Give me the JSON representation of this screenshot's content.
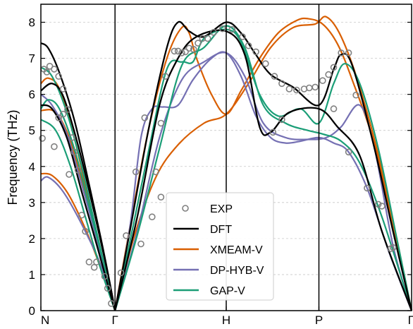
{
  "chart_data": {
    "type": "line",
    "title": "",
    "xlabel": "",
    "ylabel": "Frequency (THz)",
    "ylim": [
      0,
      8.5
    ],
    "yticks": [
      0,
      1,
      2,
      3,
      4,
      5,
      6,
      7,
      8
    ],
    "xlim": [
      0,
      5.0
    ],
    "k_points": [
      {
        "label": "N",
        "x": 0.0
      },
      {
        "label": "Γ",
        "x": 1.0
      },
      {
        "label": "H",
        "x": 2.5
      },
      {
        "label": "P",
        "x": 3.75
      },
      {
        "label": "Γ",
        "x": 5.0
      }
    ],
    "grid": "horizontal dashed",
    "legend": {
      "position": "bottom-center",
      "entries": [
        "EXP",
        "DFT",
        "XMEAM-V",
        "DP-HYB-V",
        "GAP-V"
      ]
    },
    "colors": {
      "EXP": "#808080",
      "DFT": "#000000",
      "XMEAM-V": "#d95f02",
      "DP-HYB-V": "#7570b3",
      "GAP-V": "#1b9e77"
    },
    "series": [
      {
        "name": "EXP",
        "kind": "scatter",
        "points": [
          [
            0.02,
            4.78
          ],
          [
            0.04,
            6.7
          ],
          [
            0.08,
            6.62
          ],
          [
            0.12,
            6.78
          ],
          [
            0.18,
            6.7
          ],
          [
            0.24,
            6.5
          ],
          [
            0.3,
            6.15
          ],
          [
            0.18,
            4.55
          ],
          [
            0.24,
            5.35
          ],
          [
            0.3,
            5.45
          ],
          [
            0.36,
            5.58
          ],
          [
            0.42,
            4.8
          ],
          [
            0.45,
            4.4
          ],
          [
            0.38,
            3.78
          ],
          [
            0.5,
            3.9
          ],
          [
            0.55,
            2.65
          ],
          [
            0.6,
            2.2
          ],
          [
            0.65,
            1.35
          ],
          [
            0.72,
            1.2
          ],
          [
            0.75,
            1.35
          ],
          [
            0.86,
            0.95
          ],
          [
            0.9,
            0.62
          ],
          [
            0.95,
            0.2
          ],
          [
            1.08,
            1.05
          ],
          [
            1.15,
            2.08
          ],
          [
            1.28,
            3.85
          ],
          [
            1.4,
            5.35
          ],
          [
            1.55,
            3.85
          ],
          [
            1.62,
            5.2
          ],
          [
            1.68,
            6.5
          ],
          [
            1.8,
            7.2
          ],
          [
            1.85,
            7.2
          ],
          [
            1.9,
            7.15
          ],
          [
            1.95,
            7.18
          ],
          [
            2.0,
            7.28
          ],
          [
            2.06,
            7.25
          ],
          [
            2.12,
            7.42
          ],
          [
            2.18,
            7.55
          ],
          [
            2.25,
            7.55
          ],
          [
            2.33,
            7.72
          ],
          [
            2.45,
            7.82
          ],
          [
            2.58,
            7.8
          ],
          [
            2.72,
            7.6
          ],
          [
            2.8,
            7.35
          ],
          [
            2.9,
            7.18
          ],
          [
            3.03,
            6.85
          ],
          [
            3.15,
            6.5
          ],
          [
            3.25,
            6.3
          ],
          [
            3.35,
            6.15
          ],
          [
            3.45,
            6.12
          ],
          [
            3.55,
            6.15
          ],
          [
            3.62,
            6.18
          ],
          [
            3.7,
            6.2
          ],
          [
            3.8,
            6.38
          ],
          [
            3.88,
            6.55
          ],
          [
            3.95,
            6.75
          ],
          [
            4.05,
            7.15
          ],
          [
            4.15,
            7.15
          ],
          [
            4.25,
            5.98
          ],
          [
            4.4,
            3.4
          ],
          [
            4.6,
            2.9
          ],
          [
            4.75,
            1.75
          ],
          [
            1.35,
            1.85
          ],
          [
            1.5,
            2.6
          ],
          [
            1.62,
            3.15
          ],
          [
            3.13,
            4.95
          ],
          [
            3.25,
            5.3
          ],
          [
            3.95,
            5.6
          ],
          [
            4.15,
            4.4
          ],
          [
            4.55,
            2.95
          ],
          [
            4.72,
            1.72
          ]
        ]
      },
      {
        "name": "DFT",
        "kind": "line",
        "branches": [
          [
            [
              0,
              7.42
            ],
            [
              0.1,
              7.28
            ],
            [
              0.25,
              6.6
            ],
            [
              0.45,
              5.3
            ],
            [
              0.65,
              3.5
            ],
            [
              0.85,
              1.6
            ],
            [
              1.0,
              0
            ]
          ],
          [
            [
              0,
              6.1
            ],
            [
              0.15,
              6.3
            ],
            [
              0.3,
              5.95
            ],
            [
              0.5,
              4.6
            ],
            [
              0.7,
              2.9
            ],
            [
              0.9,
              1.05
            ],
            [
              1.0,
              0
            ]
          ],
          [
            [
              0,
              5.7
            ],
            [
              0.15,
              5.6
            ],
            [
              0.35,
              4.8
            ],
            [
              0.55,
              3.3
            ],
            [
              0.75,
              1.85
            ],
            [
              1.0,
              0
            ]
          ],
          [
            [
              1.0,
              0
            ],
            [
              1.2,
              2.2
            ],
            [
              1.45,
              5.0
            ],
            [
              1.7,
              7.3
            ],
            [
              1.85,
              8.0
            ],
            [
              2.0,
              7.75
            ],
            [
              2.2,
              7.6
            ],
            [
              2.5,
              8.0
            ],
            [
              2.7,
              7.7
            ],
            [
              2.9,
              7.1
            ],
            [
              3.1,
              6.55
            ],
            [
              3.4,
              6.2
            ],
            [
              3.75,
              5.7
            ],
            [
              3.95,
              6.7
            ],
            [
              4.05,
              7.1
            ],
            [
              4.2,
              6.8
            ],
            [
              4.5,
              4.5
            ],
            [
              4.75,
              2.2
            ],
            [
              5.0,
              0
            ]
          ],
          [
            [
              1.0,
              0
            ],
            [
              1.3,
              2.6
            ],
            [
              1.6,
              5.7
            ],
            [
              1.85,
              7.0
            ],
            [
              2.1,
              7.6
            ],
            [
              2.5,
              7.75
            ],
            [
              2.75,
              7.1
            ],
            [
              2.95,
              5.1
            ],
            [
              3.1,
              4.95
            ],
            [
              3.35,
              5.5
            ],
            [
              3.75,
              5.6
            ],
            [
              4.0,
              5.1
            ],
            [
              4.3,
              4.3
            ],
            [
              4.6,
              2.2
            ],
            [
              5.0,
              0
            ]
          ]
        ]
      },
      {
        "name": "XMEAM-V",
        "kind": "line",
        "branches": [
          [
            [
              0,
              6.3
            ],
            [
              0.1,
              6.45
            ],
            [
              0.25,
              6.15
            ],
            [
              0.45,
              4.8
            ],
            [
              0.65,
              3.0
            ],
            [
              0.85,
              1.3
            ],
            [
              1.0,
              0
            ]
          ],
          [
            [
              0,
              5.55
            ],
            [
              0.2,
              5.5
            ],
            [
              0.4,
              4.7
            ],
            [
              0.6,
              3.2
            ],
            [
              0.8,
              1.6
            ],
            [
              1.0,
              0
            ]
          ],
          [
            [
              0,
              3.8
            ],
            [
              0.15,
              3.75
            ],
            [
              0.35,
              3.3
            ],
            [
              0.55,
              2.5
            ],
            [
              0.75,
              1.5
            ],
            [
              1.0,
              0
            ]
          ],
          [
            [
              1.0,
              0
            ],
            [
              1.2,
              2.3
            ],
            [
              1.45,
              5.0
            ],
            [
              1.7,
              7.0
            ],
            [
              1.9,
              7.85
            ],
            [
              2.0,
              7.7
            ],
            [
              2.1,
              7.0
            ],
            [
              2.3,
              6.0
            ],
            [
              2.5,
              5.45
            ],
            [
              2.7,
              6.1
            ],
            [
              2.95,
              7.0
            ],
            [
              3.2,
              7.7
            ],
            [
              3.45,
              8.05
            ],
            [
              3.6,
              8.1
            ],
            [
              3.8,
              7.95
            ],
            [
              4.0,
              7.4
            ],
            [
              4.2,
              6.4
            ],
            [
              4.5,
              4.6
            ],
            [
              4.75,
              2.3
            ],
            [
              5.0,
              0
            ]
          ],
          [
            [
              1.0,
              0
            ],
            [
              1.25,
              2.0
            ],
            [
              1.55,
              3.7
            ],
            [
              1.85,
              4.6
            ],
            [
              2.2,
              5.2
            ],
            [
              2.5,
              5.45
            ],
            [
              2.8,
              6.3
            ],
            [
              3.1,
              7.3
            ],
            [
              3.4,
              7.85
            ],
            [
              3.7,
              7.95
            ],
            [
              3.85,
              8.15
            ],
            [
              4.05,
              7.6
            ],
            [
              4.3,
              6.2
            ],
            [
              4.6,
              3.9
            ],
            [
              5.0,
              0
            ]
          ]
        ]
      },
      {
        "name": "DP-HYB-V",
        "kind": "line",
        "branches": [
          [
            [
              0,
              6.0
            ],
            [
              0.15,
              5.7
            ],
            [
              0.35,
              4.9
            ],
            [
              0.55,
              3.5
            ],
            [
              0.75,
              2.0
            ],
            [
              1.0,
              0
            ]
          ],
          [
            [
              0,
              3.6
            ],
            [
              0.1,
              3.7
            ],
            [
              0.3,
              3.3
            ],
            [
              0.55,
              2.4
            ],
            [
              0.8,
              1.3
            ],
            [
              1.0,
              0
            ]
          ],
          [
            [
              1.0,
              0
            ],
            [
              1.2,
              2.3
            ],
            [
              1.35,
              4.8
            ],
            [
              1.5,
              5.6
            ],
            [
              1.65,
              5.65
            ],
            [
              1.85,
              5.7
            ],
            [
              2.05,
              6.4
            ],
            [
              2.3,
              7.0
            ],
            [
              2.5,
              7.15
            ],
            [
              2.7,
              6.5
            ],
            [
              2.9,
              5.4
            ],
            [
              3.1,
              4.8
            ],
            [
              3.3,
              4.65
            ],
            [
              3.5,
              4.7
            ],
            [
              3.75,
              4.8
            ],
            [
              3.95,
              4.65
            ],
            [
              4.15,
              4.4
            ],
            [
              4.4,
              3.4
            ],
            [
              4.7,
              1.6
            ],
            [
              5.0,
              0
            ]
          ],
          [
            [
              1.0,
              0
            ],
            [
              1.3,
              2.2
            ],
            [
              1.6,
              4.8
            ],
            [
              1.9,
              6.4
            ],
            [
              2.2,
              6.9
            ],
            [
              2.5,
              7.15
            ],
            [
              2.75,
              6.5
            ],
            [
              3.0,
              5.2
            ],
            [
              3.3,
              4.8
            ],
            [
              3.6,
              4.75
            ],
            [
              3.85,
              4.8
            ],
            [
              4.05,
              5.1
            ],
            [
              4.3,
              5.7
            ],
            [
              4.5,
              4.5
            ],
            [
              4.75,
              1.8
            ],
            [
              5.0,
              0
            ]
          ]
        ]
      },
      {
        "name": "GAP-V",
        "kind": "line",
        "branches": [
          [
            [
              0,
              5.6
            ],
            [
              0.1,
              5.85
            ],
            [
              0.25,
              5.6
            ],
            [
              0.45,
              4.5
            ],
            [
              0.65,
              2.9
            ],
            [
              0.85,
              1.3
            ],
            [
              1.0,
              0
            ]
          ],
          [
            [
              0,
              5.3
            ],
            [
              0.2,
              5.0
            ],
            [
              0.4,
              4.0
            ],
            [
              0.6,
              2.6
            ],
            [
              0.8,
              1.2
            ],
            [
              1.0,
              0
            ]
          ],
          [
            [
              0,
              6.75
            ],
            [
              0.15,
              6.5
            ],
            [
              0.35,
              5.5
            ],
            [
              0.55,
              4.0
            ],
            [
              0.75,
              2.2
            ],
            [
              1.0,
              0
            ]
          ],
          [
            [
              1.0,
              0
            ],
            [
              1.2,
              1.9
            ],
            [
              1.45,
              4.4
            ],
            [
              1.7,
              6.7
            ],
            [
              1.9,
              6.9
            ],
            [
              2.05,
              6.9
            ],
            [
              2.2,
              7.55
            ],
            [
              2.5,
              7.8
            ],
            [
              2.7,
              7.45
            ],
            [
              2.95,
              6.0
            ],
            [
              3.2,
              5.4
            ],
            [
              3.5,
              5.6
            ],
            [
              3.75,
              5.2
            ],
            [
              3.95,
              6.3
            ],
            [
              4.1,
              6.85
            ],
            [
              4.3,
              6.3
            ],
            [
              4.55,
              4.5
            ],
            [
              4.8,
              2.0
            ],
            [
              5.0,
              0
            ]
          ],
          [
            [
              1.0,
              0
            ],
            [
              1.3,
              2.1
            ],
            [
              1.6,
              4.5
            ],
            [
              1.9,
              6.8
            ],
            [
              2.2,
              7.3
            ],
            [
              2.5,
              7.9
            ],
            [
              2.75,
              7.3
            ],
            [
              3.0,
              5.7
            ],
            [
              3.3,
              5.2
            ],
            [
              3.6,
              5.0
            ],
            [
              3.8,
              4.9
            ],
            [
              4.05,
              4.7
            ],
            [
              4.3,
              4.1
            ],
            [
              4.6,
              2.6
            ],
            [
              5.0,
              0
            ]
          ]
        ]
      }
    ]
  }
}
